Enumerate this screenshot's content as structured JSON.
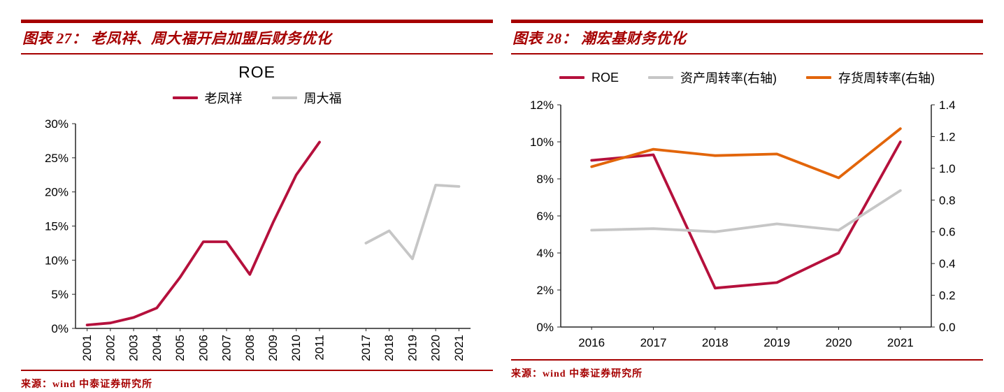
{
  "brand": {
    "red": "#a60000",
    "axis": "#262626"
  },
  "panels": [
    {
      "header": "图表 27：  老凤祥、周大福开启加盟后财务优化",
      "source": "来源：wind 中泰证券研究所"
    },
    {
      "header": "图表 28：  潮宏基财务优化",
      "source": "来源：wind 中泰证券研究所"
    }
  ],
  "chart_data": [
    {
      "type": "line",
      "title": "ROE",
      "categories": [
        "2001",
        "2002",
        "2003",
        "2004",
        "2005",
        "2006",
        "2007",
        "2008",
        "2009",
        "2010",
        "2011",
        "",
        "2017",
        "2018",
        "2019",
        "2020",
        "2021"
      ],
      "series": [
        {
          "name": "老凤祥",
          "color": "#b5103c",
          "axis": "left",
          "values": [
            0.5,
            0.8,
            1.6,
            3.0,
            7.5,
            12.7,
            12.7,
            7.9,
            15.5,
            22.5,
            27.3,
            null,
            null,
            null,
            null,
            null,
            null
          ]
        },
        {
          "name": "周大福",
          "color": "#c6c6c6",
          "axis": "left",
          "values": [
            null,
            null,
            null,
            null,
            null,
            null,
            null,
            null,
            null,
            null,
            null,
            null,
            12.5,
            14.3,
            10.2,
            21.0,
            20.8
          ]
        }
      ],
      "y_axis": {
        "min": 0,
        "max": 30,
        "step": 5,
        "format": "percent"
      },
      "grid": false,
      "legend_position": "top-center",
      "x_label_rotation": -90
    },
    {
      "type": "line",
      "title": "",
      "categories": [
        "2016",
        "2017",
        "2018",
        "2019",
        "2020",
        "2021"
      ],
      "series": [
        {
          "name": "ROE",
          "color": "#b5103c",
          "axis": "left",
          "values": [
            9.0,
            9.3,
            2.1,
            2.4,
            4.0,
            10.0
          ]
        },
        {
          "name": "资产周转率(右轴)",
          "color": "#c6c6c6",
          "axis": "right",
          "values": [
            0.61,
            0.62,
            0.6,
            0.65,
            0.61,
            0.86
          ]
        },
        {
          "name": "存货周转率(右轴)",
          "color": "#e2650a",
          "axis": "right",
          "values": [
            1.01,
            1.12,
            1.08,
            1.09,
            0.94,
            1.25
          ]
        }
      ],
      "y_axis": {
        "min": 0,
        "max": 12,
        "step": 2,
        "format": "percent"
      },
      "y2_axis": {
        "min": 0,
        "max": 1.4,
        "step": 0.2,
        "format": "decimal1"
      },
      "grid": false,
      "legend_position": "top-center",
      "x_label_rotation": 0
    }
  ]
}
